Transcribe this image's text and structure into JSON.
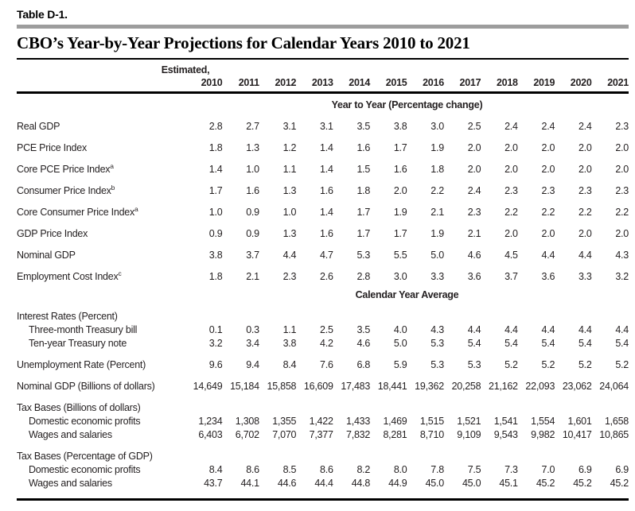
{
  "doc": {
    "table_label": "Table D-1.",
    "title": "CBO’s Year-by-Year Projections for Calendar Years 2010 to 2021",
    "estimated_note": "Estimated,",
    "years": [
      "2010",
      "2011",
      "2012",
      "2013",
      "2014",
      "2015",
      "2016",
      "2017",
      "2018",
      "2019",
      "2020",
      "2021"
    ],
    "colors": {
      "divider_gray": "#9d9d9d",
      "text": "#231f20",
      "rule_black": "#000000"
    },
    "sections": [
      {
        "title": "Year to Year (Percentage change)",
        "rows": [
          {
            "label": "Real GDP",
            "values": [
              "2.8",
              "2.7",
              "3.1",
              "3.1",
              "3.5",
              "3.8",
              "3.0",
              "2.5",
              "2.4",
              "2.4",
              "2.4",
              "2.3"
            ]
          },
          {
            "label": "PCE Price Index",
            "values": [
              "1.8",
              "1.3",
              "1.2",
              "1.4",
              "1.6",
              "1.7",
              "1.9",
              "2.0",
              "2.0",
              "2.0",
              "2.0",
              "2.0"
            ]
          },
          {
            "label": "Core PCE Price Index",
            "sup": "a",
            "values": [
              "1.4",
              "1.0",
              "1.1",
              "1.4",
              "1.5",
              "1.6",
              "1.8",
              "2.0",
              "2.0",
              "2.0",
              "2.0",
              "2.0"
            ]
          },
          {
            "label": "Consumer Price Index",
            "sup": "b",
            "values": [
              "1.7",
              "1.6",
              "1.3",
              "1.6",
              "1.8",
              "2.0",
              "2.2",
              "2.4",
              "2.3",
              "2.3",
              "2.3",
              "2.3"
            ]
          },
          {
            "label": "Core Consumer Price Index",
            "sup": "a",
            "values": [
              "1.0",
              "0.9",
              "1.0",
              "1.4",
              "1.7",
              "1.9",
              "2.1",
              "2.3",
              "2.2",
              "2.2",
              "2.2",
              "2.2"
            ]
          },
          {
            "label": "GDP Price Index",
            "values": [
              "0.9",
              "0.9",
              "1.3",
              "1.6",
              "1.7",
              "1.7",
              "1.9",
              "2.1",
              "2.0",
              "2.0",
              "2.0",
              "2.0"
            ]
          },
          {
            "label": "Nominal GDP",
            "values": [
              "3.8",
              "3.7",
              "4.4",
              "4.7",
              "5.3",
              "5.5",
              "5.0",
              "4.6",
              "4.5",
              "4.4",
              "4.4",
              "4.3"
            ]
          },
          {
            "label": "Employment Cost Index",
            "sup": "c",
            "values": [
              "1.8",
              "2.1",
              "2.3",
              "2.6",
              "2.8",
              "3.0",
              "3.3",
              "3.6",
              "3.7",
              "3.6",
              "3.3",
              "3.2"
            ]
          }
        ]
      },
      {
        "title": "Calendar Year Average",
        "rows": [
          {
            "label": "Interest Rates (Percent)",
            "group": true,
            "values": []
          },
          {
            "label": "Three-month Treasury bill",
            "indent": true,
            "tight": true,
            "values": [
              "0.1",
              "0.3",
              "1.1",
              "2.5",
              "3.5",
              "4.0",
              "4.3",
              "4.4",
              "4.4",
              "4.4",
              "4.4",
              "4.4"
            ]
          },
          {
            "label": "Ten-year Treasury note",
            "indent": true,
            "tight": true,
            "values": [
              "3.2",
              "3.4",
              "3.8",
              "4.2",
              "4.6",
              "5.0",
              "5.3",
              "5.4",
              "5.4",
              "5.4",
              "5.4",
              "5.4"
            ]
          },
          {
            "label": "Unemployment Rate (Percent)",
            "values": [
              "9.6",
              "9.4",
              "8.4",
              "7.6",
              "6.8",
              "5.9",
              "5.3",
              "5.3",
              "5.2",
              "5.2",
              "5.2",
              "5.2"
            ]
          },
          {
            "label": "Nominal GDP (Billions of dollars)",
            "values": [
              "14,649",
              "15,184",
              "15,858",
              "16,609",
              "17,483",
              "18,441",
              "19,362",
              "20,258",
              "21,162",
              "22,093",
              "23,062",
              "24,064"
            ]
          },
          {
            "label": "Tax Bases (Billions of dollars)",
            "group": true,
            "values": []
          },
          {
            "label": "Domestic economic profits",
            "indent": true,
            "tight": true,
            "values": [
              "1,234",
              "1,308",
              "1,355",
              "1,422",
              "1,433",
              "1,469",
              "1,515",
              "1,521",
              "1,541",
              "1,554",
              "1,601",
              "1,658"
            ]
          },
          {
            "label": "Wages and salaries",
            "indent": true,
            "tight": true,
            "values": [
              "6,403",
              "6,702",
              "7,070",
              "7,377",
              "7,832",
              "8,281",
              "8,710",
              "9,109",
              "9,543",
              "9,982",
              "10,417",
              "10,865"
            ]
          },
          {
            "label": "Tax Bases (Percentage of GDP)",
            "group": true,
            "values": []
          },
          {
            "label": "Domestic economic profits",
            "indent": true,
            "tight": true,
            "values": [
              "8.4",
              "8.6",
              "8.5",
              "8.6",
              "8.2",
              "8.0",
              "7.8",
              "7.5",
              "7.3",
              "7.0",
              "6.9",
              "6.9"
            ]
          },
          {
            "label": "Wages and salaries",
            "indent": true,
            "tight": true,
            "values": [
              "43.7",
              "44.1",
              "44.6",
              "44.4",
              "44.8",
              "44.9",
              "45.0",
              "45.0",
              "45.1",
              "45.2",
              "45.2",
              "45.2"
            ]
          }
        ]
      }
    ]
  }
}
